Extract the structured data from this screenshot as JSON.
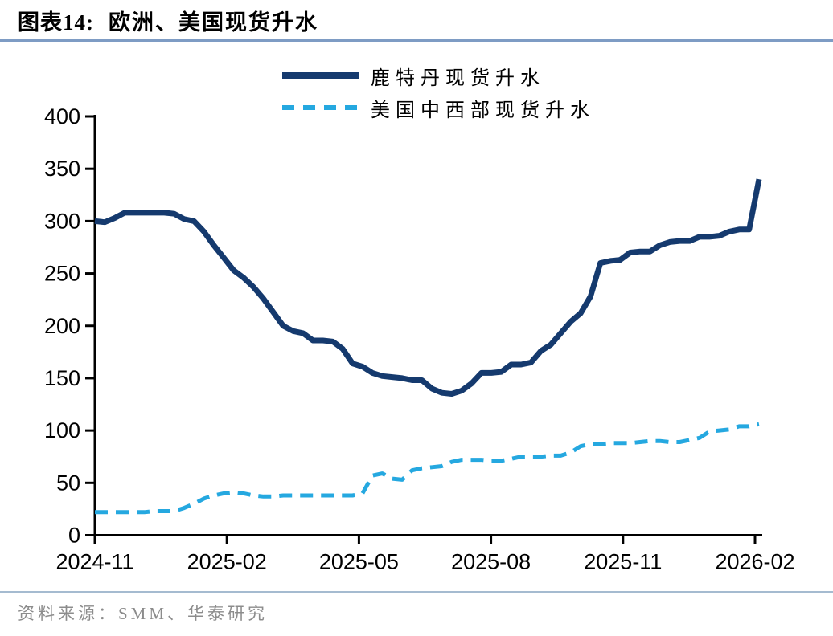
{
  "title": {
    "prefix": "图表14:",
    "text": "欧洲、美国现货升水"
  },
  "source": {
    "label": "资料来源：SMM、华泰研究"
  },
  "colors": {
    "rotterdam_line": "#153A6E",
    "midwest_line": "#25A8E0",
    "title_rule": "#7E9CC4",
    "source_rule": "#A5BBD0",
    "axis": "#000000",
    "source_text": "#8C8C8C"
  },
  "chart_data": {
    "type": "line",
    "title": "欧洲、美国现货升水",
    "xlabel": "",
    "ylabel": "",
    "x_tick_labels": [
      "2024-11",
      "2025-02",
      "2025-05",
      "2025-08",
      "2025-11",
      "2026-02"
    ],
    "x_range_note": "weekly points, evenly spaced from 2024-11 to 2026-02",
    "y_ticks": [
      0,
      50,
      100,
      150,
      200,
      250,
      300,
      350,
      400
    ],
    "ylim": [
      0,
      400
    ],
    "grid": false,
    "legend_position": "top-center",
    "series": [
      {
        "name": "鹿特丹现货升水",
        "color": "#153A6E",
        "dash": false,
        "values": [
          300,
          299,
          303,
          308,
          308,
          308,
          308,
          308,
          307,
          302,
          300,
          290,
          277,
          265,
          253,
          246,
          237,
          226,
          213,
          200,
          195,
          193,
          186,
          186,
          185,
          178,
          164,
          161,
          155,
          152,
          151,
          150,
          148,
          148,
          140,
          136,
          135,
          138,
          145,
          155,
          155,
          156,
          163,
          163,
          165,
          176,
          182,
          193,
          204,
          212,
          228,
          260,
          262,
          263,
          270,
          271,
          271,
          277,
          280,
          281,
          281,
          285,
          285,
          286,
          290,
          292,
          292,
          340
        ]
      },
      {
        "name": "美国中西部现货升水",
        "color": "#25A8E0",
        "dash": true,
        "values": [
          22,
          22,
          22,
          22,
          22,
          22,
          23,
          23,
          23,
          26,
          30,
          35,
          38,
          40,
          41,
          40,
          38,
          37,
          37,
          38,
          38,
          38,
          38,
          38,
          38,
          38,
          38,
          40,
          57,
          59,
          54,
          53,
          62,
          64,
          65,
          66,
          70,
          72,
          72,
          72,
          71,
          71,
          73,
          75,
          75,
          75,
          76,
          76,
          79,
          85,
          87,
          87,
          88,
          88,
          88,
          89,
          90,
          90,
          89,
          89,
          91,
          93,
          99,
          100,
          101,
          104,
          104,
          106
        ]
      }
    ]
  }
}
